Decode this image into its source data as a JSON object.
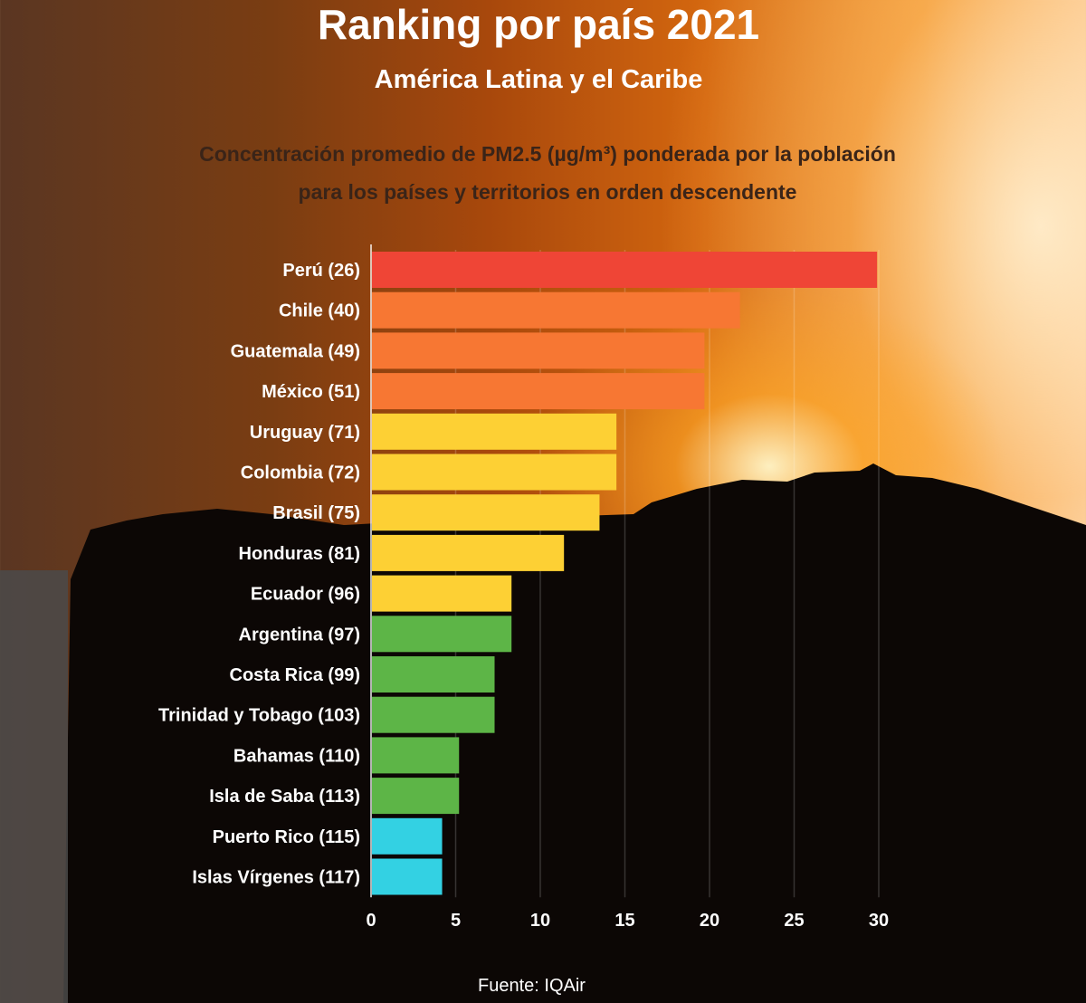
{
  "header": {
    "title": "Ranking por país 2021",
    "subtitle": "América Latina y el Caribe",
    "description_line1": "Concentración promedio de PM2.5 (µg/m³) ponderada por la población",
    "description_line2": "para los países y territorios en orden descendente"
  },
  "source": "Fuente: IQAir",
  "colors": {
    "red": "#ef4536",
    "orange": "#f77733",
    "yellow": "#fdd034",
    "green": "#5db547",
    "cyan": "#33d1e3"
  },
  "chart_data": {
    "type": "bar",
    "orientation": "horizontal",
    "title": "Ranking por país 2021",
    "xlim": [
      0,
      30
    ],
    "x_ticks": [
      "0",
      "5",
      "10",
      "15",
      "20",
      "25",
      "30"
    ],
    "grid": true,
    "categories": [
      "Perú (26)",
      "Chile (40)",
      "Guatemala (49)",
      "México (51)",
      "Uruguay (71)",
      "Colombia (72)",
      "Brasil (75)",
      "Honduras (81)",
      "Ecuador (96)",
      "Argentina (97)",
      "Costa Rica (99)",
      "Trinidad y Tobago (103)",
      "Bahamas (110)",
      "Isla de Saba (113)",
      "Puerto Rico (115)",
      "Islas Vírgenes (117)"
    ],
    "values": [
      29.9,
      21.8,
      19.7,
      19.7,
      14.5,
      14.5,
      13.5,
      11.4,
      8.3,
      8.3,
      7.3,
      7.3,
      5.2,
      5.2,
      4.2,
      4.2
    ],
    "bar_colors": [
      "#ef4536",
      "#f77733",
      "#f77733",
      "#f77733",
      "#fdd034",
      "#fdd034",
      "#fdd034",
      "#fdd034",
      "#fdd034",
      "#5db547",
      "#5db547",
      "#5db547",
      "#5db547",
      "#5db547",
      "#33d1e3",
      "#33d1e3"
    ]
  }
}
